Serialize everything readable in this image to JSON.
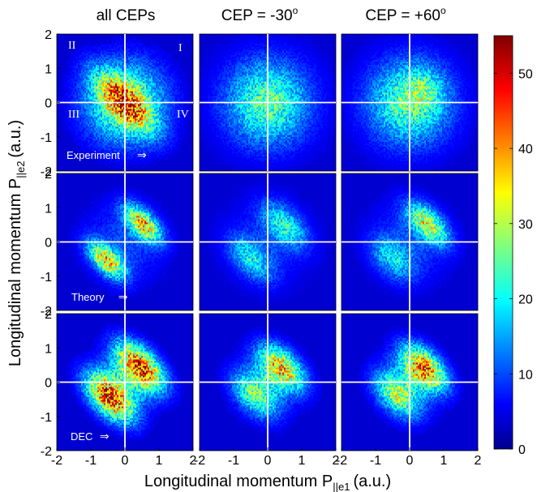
{
  "figure": {
    "column_titles": [
      "all CEPs",
      "CEP = -30",
      "CEP = +60"
    ],
    "column_title_superscripts": [
      "",
      "o",
      "o"
    ],
    "row_labels": [
      "Experiment",
      "Theory",
      "DEC"
    ],
    "row_label_arrow": "⇒",
    "quadrant_labels": [
      "II",
      "I",
      "III",
      "IV"
    ],
    "xlabel_main": "Longitudinal momentum P",
    "xlabel_sub": "||e1",
    "xlabel_unit": "(a.u.)",
    "ylabel_main": "Longitudinal momentum P",
    "ylabel_sub": "||e2",
    "ylabel_unit": "(a.u.)"
  },
  "chart_data": {
    "type": "heatmap",
    "x": {
      "range": [
        -2,
        2
      ],
      "ticks": [
        -2,
        -1,
        0,
        1,
        2
      ]
    },
    "y": {
      "range": [
        -2,
        2
      ],
      "ticks": [
        -2,
        -1,
        0,
        1,
        2
      ]
    },
    "grid": false,
    "crosshair_lines": true,
    "colormap": "jet",
    "colorbar": {
      "range": [
        0,
        55
      ],
      "ticks": [
        0,
        10,
        20,
        30,
        40,
        50
      ]
    },
    "panels": [
      {
        "row": "Experiment",
        "column": "all CEPs",
        "pattern": "broad round distribution, maxima near origin along the anti-diagonal",
        "peak_counts": 55
      },
      {
        "row": "Experiment",
        "column": "CEP = -30",
        "pattern": "diffuse round distribution",
        "peak_counts": 25
      },
      {
        "row": "Experiment",
        "column": "CEP = +60",
        "pattern": "diffuse round distribution, slightly brighter in quadrant I",
        "peak_counts": 30
      },
      {
        "row": "Theory",
        "column": "all CEPs",
        "pattern": "lobes in quadrants I and III along the diagonal",
        "peak_counts": 40
      },
      {
        "row": "Theory",
        "column": "CEP = -30",
        "pattern": "weak lobes in quadrants I and III",
        "peak_counts": 22
      },
      {
        "row": "Theory",
        "column": "CEP = +60",
        "pattern": "dominant lobe in quadrant I",
        "peak_counts": 35
      },
      {
        "row": "DEC",
        "column": "all CEPs",
        "pattern": "bright bell-shaped lobes in quadrants I and III",
        "peak_counts": 50
      },
      {
        "row": "DEC",
        "column": "CEP = -30",
        "pattern": "asymmetric lobe, brighter in quadrant I",
        "peak_counts": 40
      },
      {
        "row": "DEC",
        "column": "CEP = +60",
        "pattern": "asymmetric lobe, brighter in quadrant I",
        "peak_counts": 45
      }
    ]
  }
}
